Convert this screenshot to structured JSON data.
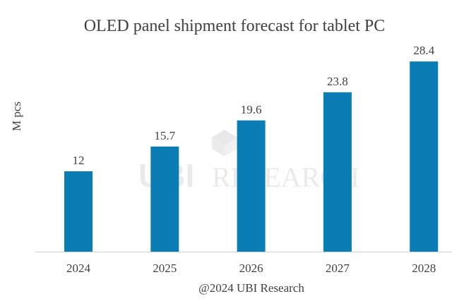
{
  "chart_data": {
    "type": "bar",
    "title": "OLED panel shipment forecast for tablet PC",
    "xlabel": "@2024 UBI Research",
    "ylabel": "M pcs",
    "categories": [
      "2024",
      "2025",
      "2026",
      "2027",
      "2028"
    ],
    "values": [
      12,
      15.7,
      19.6,
      23.8,
      28.4
    ],
    "data_labels": [
      "12",
      "15.7",
      "19.6",
      "23.8",
      "28.4"
    ],
    "ylim": [
      0,
      30
    ],
    "grid": false,
    "legend": "none",
    "bar_color": "#0A7DB5",
    "watermark": "UBI RESEARCH"
  }
}
